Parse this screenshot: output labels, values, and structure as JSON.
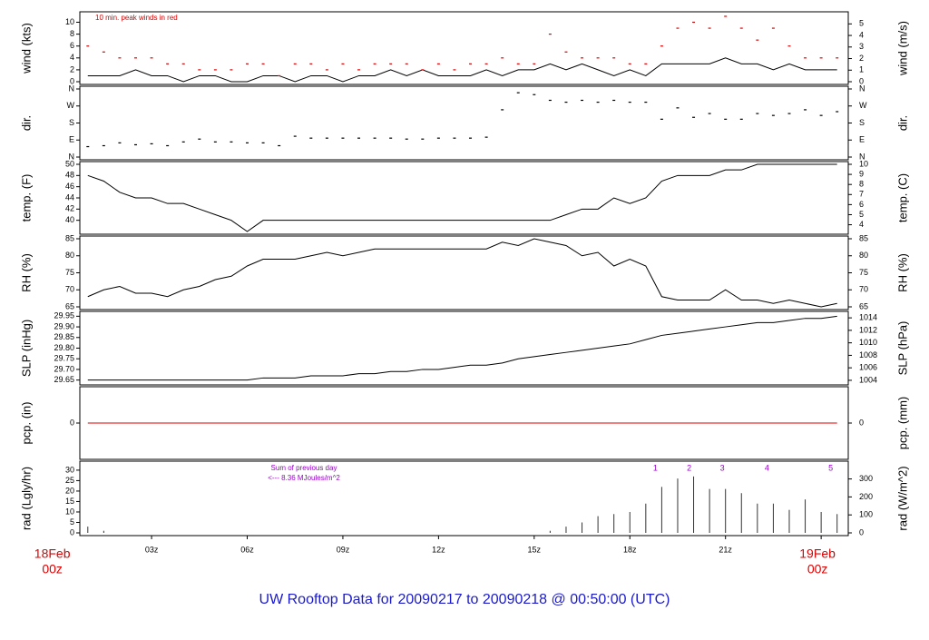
{
  "title": "UW Rooftop Data for 20090217  to  20090218 @ 00:50:00  (UTC)",
  "chart_data": [
    {
      "type": "line",
      "ylabel": "wind (kts)",
      "y2label": "wind (m/s)",
      "xlim": [
        0.75,
        24.85
      ],
      "ylim": [
        0,
        11.3
      ],
      "yticks": [
        0,
        2,
        4,
        6,
        8,
        10
      ],
      "y2lim": [
        0,
        5.81
      ],
      "y2ticks": [
        0,
        1,
        2,
        3,
        4,
        5
      ],
      "annotation": "10 min. peak winds in red",
      "annotation_color": "#dd0000",
      "x": [
        1,
        1.5,
        2,
        2.5,
        3,
        3.5,
        4,
        4.5,
        5,
        5.5,
        6,
        6.5,
        7,
        7.5,
        8,
        8.5,
        9,
        9.5,
        10,
        10.5,
        11,
        11.5,
        12,
        12.5,
        13,
        13.5,
        14,
        14.5,
        15,
        15.5,
        16,
        16.5,
        17,
        17.5,
        18,
        18.5,
        19,
        19.5,
        20,
        20.5,
        21,
        21.5,
        22,
        22.5,
        23,
        23.5,
        24,
        24.5
      ],
      "series": [
        {
          "style": "line",
          "color": "#000000",
          "values": [
            1,
            1,
            1,
            2,
            1,
            1,
            0,
            1,
            1,
            0,
            0,
            1,
            1,
            0,
            1,
            1,
            0,
            1,
            1,
            2,
            1,
            2,
            1,
            1,
            1,
            2,
            1,
            2,
            2,
            3,
            2,
            3,
            2,
            1,
            2,
            1,
            3,
            3,
            3,
            3,
            4,
            3,
            3,
            2,
            3,
            2,
            2,
            2
          ]
        },
        {
          "style": "dash",
          "color": "#dd0000",
          "values": [
            6,
            5,
            4,
            4,
            4,
            3,
            3,
            2,
            2,
            2,
            3,
            3,
            1,
            3,
            3,
            2,
            3,
            2,
            3,
            3,
            3,
            2,
            3,
            2,
            3,
            3,
            4,
            3,
            3,
            8,
            5,
            4,
            4,
            4,
            3,
            3,
            6,
            9,
            10,
            9,
            11,
            9,
            7,
            9,
            6,
            4,
            4,
            4
          ]
        }
      ]
    },
    {
      "type": "scatter",
      "ylabel": "dir.",
      "y2label": "dir.",
      "xlim": [
        0.75,
        24.85
      ],
      "ylim": [
        0,
        360
      ],
      "yticks": [
        {
          "value": 0,
          "label": "N"
        },
        {
          "value": 90,
          "label": "E"
        },
        {
          "value": 180,
          "label": "S"
        },
        {
          "value": 270,
          "label": "W"
        },
        {
          "value": 360,
          "label": "N"
        }
      ],
      "y2lim": [
        0,
        360
      ],
      "y2ticks": [
        {
          "value": 0,
          "label": "N"
        },
        {
          "value": 90,
          "label": "E"
        },
        {
          "value": 180,
          "label": "S"
        },
        {
          "value": 270,
          "label": "W"
        },
        {
          "value": 360,
          "label": "N"
        }
      ],
      "x": [
        1,
        1.5,
        2,
        2.5,
        3,
        3.5,
        4,
        4.5,
        5,
        5.5,
        6,
        6.5,
        7,
        7.5,
        8,
        8.5,
        9,
        9.5,
        10,
        10.5,
        11,
        11.5,
        12,
        12.5,
        13,
        13.5,
        14,
        14.5,
        15,
        15.5,
        16,
        16.5,
        17,
        17.5,
        18,
        18.5,
        19,
        19.5,
        20,
        20.5,
        21,
        21.5,
        22,
        22.5,
        23,
        23.5,
        24,
        24.5
      ],
      "series": [
        {
          "style": "dot",
          "color": "#000000",
          "values": [
            55,
            60,
            75,
            65,
            70,
            60,
            80,
            95,
            80,
            80,
            75,
            75,
            60,
            110,
            100,
            100,
            100,
            100,
            100,
            100,
            95,
            95,
            100,
            100,
            100,
            105,
            250,
            340,
            330,
            300,
            290,
            300,
            290,
            300,
            290,
            290,
            200,
            260,
            210,
            230,
            200,
            200,
            230,
            220,
            230,
            250,
            220,
            240
          ]
        }
      ]
    },
    {
      "type": "line",
      "ylabel": "temp. (F)",
      "y2label": "temp. (C)",
      "xlim": [
        0.75,
        24.85
      ],
      "ylim": [
        38,
        50
      ],
      "yticks": [
        40,
        42,
        44,
        46,
        48,
        50
      ],
      "y2lim": [
        3.33,
        10
      ],
      "y2ticks": [
        4,
        5,
        6,
        7,
        8,
        9,
        10
      ],
      "x": [
        1,
        1.5,
        2,
        2.5,
        3,
        3.5,
        4,
        4.5,
        5,
        5.5,
        6,
        6.5,
        7,
        7.5,
        8,
        8.5,
        9,
        9.5,
        10,
        10.5,
        11,
        11.5,
        12,
        12.5,
        13,
        13.5,
        14,
        14.5,
        15,
        15.5,
        16,
        16.5,
        17,
        17.5,
        18,
        18.5,
        19,
        19.5,
        20,
        20.5,
        21,
        21.5,
        22,
        22.5,
        23,
        23.5,
        24,
        24.5
      ],
      "series": [
        {
          "style": "line",
          "color": "#000000",
          "values": [
            48,
            47,
            45,
            44,
            44,
            43,
            43,
            42,
            41,
            40,
            38,
            40,
            40,
            40,
            40,
            40,
            40,
            40,
            40,
            40,
            40,
            40,
            40,
            40,
            40,
            40,
            40,
            40,
            40,
            40,
            41,
            42,
            42,
            44,
            43,
            44,
            47,
            48,
            48,
            48,
            49,
            49,
            50,
            50,
            50,
            50,
            50,
            50
          ]
        }
      ]
    },
    {
      "type": "line",
      "ylabel": "RH (%)",
      "y2label": "RH (%)",
      "xlim": [
        0.75,
        24.85
      ],
      "ylim": [
        65,
        85
      ],
      "yticks": [
        65,
        70,
        75,
        80,
        85
      ],
      "y2lim": [
        65,
        85
      ],
      "y2ticks": [
        65,
        70,
        75,
        80,
        85
      ],
      "x": [
        1,
        1.5,
        2,
        2.5,
        3,
        3.5,
        4,
        4.5,
        5,
        5.5,
        6,
        6.5,
        7,
        7.5,
        8,
        8.5,
        9,
        9.5,
        10,
        10.5,
        11,
        11.5,
        12,
        12.5,
        13,
        13.5,
        14,
        14.5,
        15,
        15.5,
        16,
        16.5,
        17,
        17.5,
        18,
        18.5,
        19,
        19.5,
        20,
        20.5,
        21,
        21.5,
        22,
        22.5,
        23,
        23.5,
        24,
        24.5
      ],
      "series": [
        {
          "style": "line",
          "color": "#000000",
          "values": [
            68,
            70,
            71,
            69,
            69,
            68,
            70,
            71,
            73,
            74,
            77,
            79,
            79,
            79,
            80,
            81,
            80,
            81,
            82,
            82,
            82,
            82,
            82,
            82,
            82,
            82,
            84,
            83,
            85,
            84,
            83,
            80,
            81,
            77,
            79,
            77,
            68,
            67,
            67,
            67,
            70,
            67,
            67,
            66,
            67,
            66,
            65,
            66
          ]
        }
      ]
    },
    {
      "type": "line",
      "ylabel": "SLP (inHg)",
      "y2label": "SLP (hPa)",
      "xlim": [
        0.75,
        24.85
      ],
      "ylim": [
        29.64,
        29.96
      ],
      "yticks": [
        29.65,
        {
          "value": 29.7,
          "label": "29.70"
        },
        29.75,
        {
          "value": 29.8,
          "label": "29.80"
        },
        29.85,
        {
          "value": 29.9,
          "label": "29.90"
        },
        29.95
      ],
      "y2lim": [
        1003.7,
        1014.6
      ],
      "y2ticks": [
        1004,
        1006,
        1008,
        1010,
        1012,
        1014
      ],
      "x": [
        1,
        1.5,
        2,
        2.5,
        3,
        3.5,
        4,
        4.5,
        5,
        5.5,
        6,
        6.5,
        7,
        7.5,
        8,
        8.5,
        9,
        9.5,
        10,
        10.5,
        11,
        11.5,
        12,
        12.5,
        13,
        13.5,
        14,
        14.5,
        15,
        15.5,
        16,
        16.5,
        17,
        17.5,
        18,
        18.5,
        19,
        19.5,
        20,
        20.5,
        21,
        21.5,
        22,
        22.5,
        23,
        23.5,
        24,
        24.5
      ],
      "series": [
        {
          "style": "line",
          "color": "#000000",
          "values": [
            29.65,
            29.65,
            29.65,
            29.65,
            29.65,
            29.65,
            29.65,
            29.65,
            29.65,
            29.65,
            29.65,
            29.66,
            29.66,
            29.66,
            29.67,
            29.67,
            29.67,
            29.68,
            29.68,
            29.69,
            29.69,
            29.7,
            29.7,
            29.71,
            29.72,
            29.72,
            29.73,
            29.75,
            29.76,
            29.77,
            29.78,
            29.79,
            29.8,
            29.81,
            29.82,
            29.84,
            29.86,
            29.87,
            29.88,
            29.89,
            29.9,
            29.91,
            29.92,
            29.92,
            29.93,
            29.94,
            29.94,
            29.95
          ]
        }
      ]
    },
    {
      "type": "line",
      "ylabel": "pcp. (in)",
      "y2label": "pcp. (mm)",
      "xlim": [
        0.75,
        24.85
      ],
      "ylim": [
        -1,
        1
      ],
      "yticks": [
        0
      ],
      "y2lim": [
        -25.4,
        25.4
      ],
      "y2ticks": [
        0
      ],
      "x": [
        1,
        1.5,
        2,
        2.5,
        3,
        3.5,
        4,
        4.5,
        5,
        5.5,
        6,
        6.5,
        7,
        7.5,
        8,
        8.5,
        9,
        9.5,
        10,
        10.5,
        11,
        11.5,
        12,
        12.5,
        13,
        13.5,
        14,
        14.5,
        15,
        15.5,
        16,
        16.5,
        17,
        17.5,
        18,
        18.5,
        19,
        19.5,
        20,
        20.5,
        21,
        21.5,
        22,
        22.5,
        23,
        23.5,
        24,
        24.5
      ],
      "series": [
        {
          "style": "line",
          "color": "#dd0000",
          "values": [
            0,
            0,
            0,
            0,
            0,
            0,
            0,
            0,
            0,
            0,
            0,
            0,
            0,
            0,
            0,
            0,
            0,
            0,
            0,
            0,
            0,
            0,
            0,
            0,
            0,
            0,
            0,
            0,
            0,
            0,
            0,
            0,
            0,
            0,
            0,
            0,
            0,
            0,
            0,
            0,
            0,
            0,
            0,
            0,
            0,
            0,
            0,
            0
          ]
        }
      ]
    },
    {
      "type": "bar",
      "ylabel": "rad (Lgly/hr)",
      "y2label": "rad (W/m^2)",
      "xlim": [
        0.75,
        24.85
      ],
      "ylim": [
        0,
        33
      ],
      "yticks": [
        0,
        5,
        10,
        15,
        20,
        25,
        30
      ],
      "y2lim": [
        0,
        383.8
      ],
      "y2ticks": [
        0,
        100,
        200,
        300
      ],
      "annotations": [
        "Sum of previous day",
        "<--- 8.36 MJoules/m^2"
      ],
      "annotation_color": "#9900cc",
      "marker_x": [
        18.8,
        19.86,
        20.9,
        22.3,
        24.3
      ],
      "marker_labels": [
        "1",
        "2",
        "3",
        "4",
        "5"
      ],
      "xticks": [
        {
          "value": 3,
          "label": "03z"
        },
        {
          "value": 6,
          "label": "06z"
        },
        {
          "value": 9,
          "label": "09z"
        },
        {
          "value": 12,
          "label": "12z"
        },
        {
          "value": 15,
          "label": "15z"
        },
        {
          "value": 18,
          "label": "18z"
        },
        {
          "value": 21,
          "label": "21z"
        }
      ],
      "date_labels": [
        {
          "value": 0,
          "lines": [
            "18Feb",
            "00z"
          ]
        },
        {
          "value": 24,
          "lines": [
            "19Feb",
            "00z"
          ]
        }
      ],
      "x": [
        1,
        1.5,
        2,
        2.5,
        3,
        3.5,
        4,
        4.5,
        5,
        5.5,
        6,
        6.5,
        7,
        7.5,
        8,
        8.5,
        9,
        9.5,
        10,
        10.5,
        11,
        11.5,
        12,
        12.5,
        13,
        13.5,
        14,
        14.5,
        15,
        15.5,
        16,
        16.5,
        17,
        17.5,
        18,
        18.5,
        19,
        19.5,
        20,
        20.5,
        21,
        21.5,
        22,
        22.5,
        23,
        23.5,
        24,
        24.5
      ],
      "series": [
        {
          "style": "bar",
          "color": "#333333",
          "values": [
            3,
            1,
            0,
            0,
            0,
            0,
            0,
            0,
            0,
            0,
            0,
            0,
            0,
            0,
            0,
            0,
            0,
            0,
            0,
            0,
            0,
            0,
            0,
            0,
            0,
            0,
            0,
            0,
            0,
            1,
            3,
            5,
            8,
            9,
            10,
            14,
            22,
            26,
            27,
            21,
            21,
            19,
            14,
            14,
            11,
            16,
            10,
            9
          ]
        }
      ]
    }
  ]
}
